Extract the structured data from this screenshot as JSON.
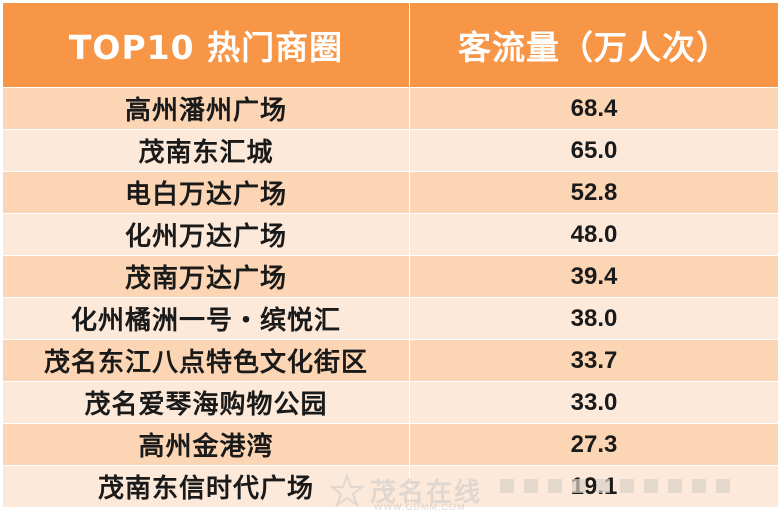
{
  "colors": {
    "header_bg": "#f79646",
    "odd_row_bg": "#fcd5b4",
    "even_row_bg": "#fde9d9"
  },
  "table": {
    "headers": [
      "TOP10 热门商圈",
      "客流量（万人次）"
    ],
    "rows": [
      {
        "name": "高州潘州广场",
        "value": "68.4"
      },
      {
        "name": "茂南东汇城",
        "value": "65.0"
      },
      {
        "name": "电白万达广场",
        "value": "52.8"
      },
      {
        "name": "化州万达广场",
        "value": "48.0"
      },
      {
        "name": "茂南万达广场",
        "value": "39.4"
      },
      {
        "name": "化州橘洲一号・缤悦汇",
        "value": "38.0"
      },
      {
        "name": "茂名东江八点特色文化街区",
        "value": "33.7"
      },
      {
        "name": "茂名爱琴海购物公园",
        "value": "33.0"
      },
      {
        "name": "高州金港湾",
        "value": "27.3"
      },
      {
        "name": "茂南东信时代广场",
        "value": "19.1"
      }
    ]
  },
  "watermark": {
    "text": "茂名在线",
    "url": "WWW.GDMM.COM",
    "icon": "star-logo-icon"
  }
}
